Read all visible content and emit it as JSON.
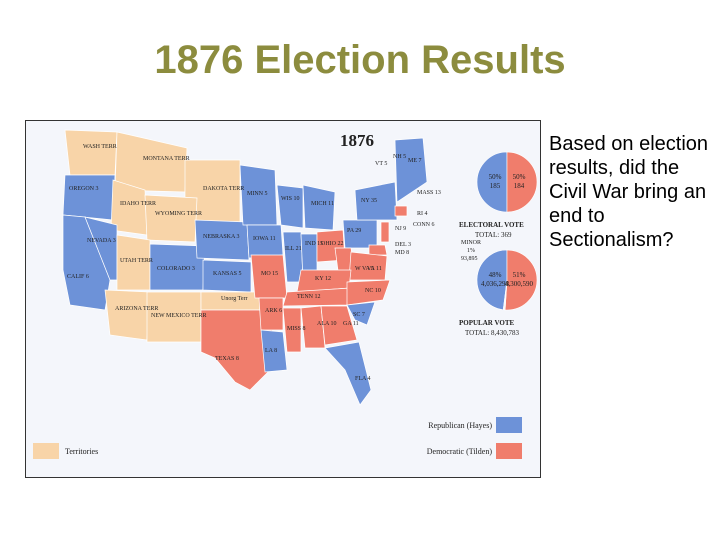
{
  "slide": {
    "title": "1876 Election Results",
    "question": "Based on election results, did the Civil War bring an end to Sectionalism?"
  },
  "map": {
    "title": "1876",
    "state_labels": [
      "WASH TERR",
      "MONTANA TERR",
      "DAKOTA TERR",
      "OREGON 3",
      "IDAHO TERR",
      "WYOMING TERR",
      "NEVADA 3",
      "CALIF 6",
      "UTAH TERR",
      "COLORADO 3",
      "NEBRASKA 3",
      "KANSAS 5",
      "ARIZONA TERR",
      "NEW MEXICO TERR",
      "Unorg Terr",
      "TEXAS 8",
      "MINN 5",
      "IOWA 11",
      "WIS 10",
      "MICH 11",
      "ILL 21",
      "IND 15",
      "OHIO 22",
      "PA 29",
      "NY 35",
      "VT 5",
      "NH 5",
      "ME 7",
      "MASS 13",
      "RI 4",
      "CONN 6",
      "NJ 9",
      "DEL 3",
      "MD 8",
      "W VA 5",
      "VA 11",
      "KY 12",
      "TENN 12",
      "NC 10",
      "SC 7",
      "GA 11",
      "ALA 10",
      "MISS 8",
      "ARK 6",
      "MO 15",
      "LA 8",
      "FLA 4"
    ],
    "electoral_vote": {
      "heading": "ELECTORAL VOTE",
      "total": "TOTAL: 369",
      "slices": [
        {
          "value": 50,
          "label": "50%",
          "count": "185"
        },
        {
          "value": 50,
          "label": "50%",
          "count": "184"
        }
      ]
    },
    "popular_vote": {
      "heading": "POPULAR VOTE",
      "total": "TOTAL: 8,430,783",
      "slices": [
        {
          "value": 48,
          "label": "48%",
          "count": "4,036,298"
        },
        {
          "value": 51,
          "label": "51%",
          "count": "4,300,590"
        },
        {
          "value": 1,
          "label": "1%",
          "count": "93,895",
          "name": "MINOR"
        }
      ]
    },
    "legend": {
      "republican": "Republican (Hayes)",
      "democratic": "Democratic (Tilden)",
      "territories": "Territories"
    }
  }
}
